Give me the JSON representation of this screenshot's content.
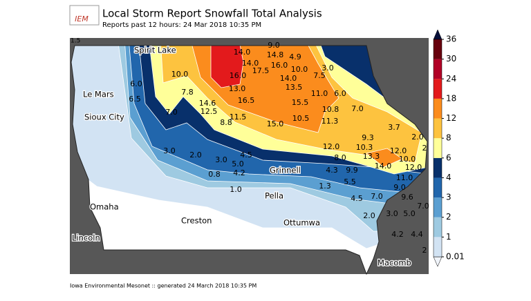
{
  "header": {
    "title": "Local Storm Report Snowfall Total Analysis",
    "subtitle": "Reports past 12 hours: 24 Mar 2018 10:35 PM"
  },
  "logo_text": "IEM",
  "corner_label": "1.5",
  "footer": "Iowa Environmental Mesonet :: generated 24 March 2018 10:35 PM",
  "cities": [
    "Spirit Lake",
    "Le Mars",
    "Sioux City",
    "Grinnell",
    "Pella",
    "Omaha",
    "Creston",
    "Ottumwa",
    "Lincoln",
    "Macomb"
  ],
  "reports": [
    "9.0",
    "14.0",
    "14.8",
    "4.9",
    "14.0",
    "16.0",
    "17.5",
    "10.0",
    "3.0",
    "7.5",
    "16.0",
    "14.0",
    "10.0",
    "6.0",
    "13.0",
    "13.5",
    "11.0",
    "6.0",
    "7.8",
    "6.5",
    "14.6",
    "16.5",
    "15.5",
    "12.5",
    "7.0",
    "10.8",
    "7.0",
    "11.5",
    "10.5",
    "11.3",
    "8.8",
    "15.0",
    "3.7",
    "9.3",
    "2.0",
    "12.0",
    "10.3",
    "12.0",
    "2",
    "3.0",
    "2.0",
    "4.5",
    "13.3",
    "10.0",
    "8.0",
    "3.0",
    "5.0",
    "14.0",
    "12.0",
    "4.2",
    "0.8",
    "4.3",
    "9.9",
    "11.0",
    "5.5",
    "1.3",
    "1.0",
    "9.0",
    "4.5",
    "7.0",
    "9.6",
    "7.0",
    "2.0",
    "3.0",
    "5.0",
    "4.2",
    "4.4",
    "2"
  ],
  "colorbar": {
    "levels": [
      0.01,
      1,
      2,
      3,
      4,
      6,
      8,
      12,
      18,
      24,
      30,
      36
    ],
    "colors": [
      "#d2e3f3",
      "#9ecae1",
      "#5b9fd1",
      "#2166ac",
      "#08306b",
      "#ffff99",
      "#fdc33f",
      "#fb8c1d",
      "#e31a1c",
      "#b10026",
      "#67000d"
    ]
  }
}
